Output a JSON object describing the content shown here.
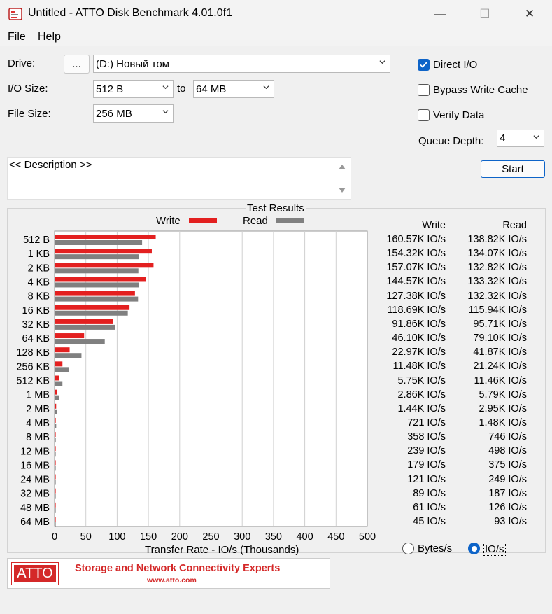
{
  "window": {
    "title": "Untitled - ATTO Disk Benchmark 4.01.0f1",
    "minimize_glyph": "—",
    "maximize_glyph": "☐",
    "close_glyph": "✕"
  },
  "menu": {
    "file": "File",
    "help": "Help"
  },
  "form": {
    "drive_label": "Drive:",
    "browse_label": "...",
    "drive_value": "(D:) Новый том",
    "io_size_label": "I/O Size:",
    "io_from": "512 B",
    "to_label": "to",
    "io_to": "64 MB",
    "file_size_label": "File Size:",
    "file_size": "256 MB",
    "direct_io_label": "Direct I/O",
    "direct_io_checked": true,
    "bypass_label": "Bypass Write Cache",
    "bypass_checked": false,
    "verify_label": "Verify Data",
    "verify_checked": false,
    "queue_label": "Queue Depth:",
    "queue_value": "4",
    "start_label": "Start",
    "description": "<< Description >>"
  },
  "results": {
    "group_title": "Test Results",
    "write_header": "Write",
    "read_header": "Read",
    "rows": [
      {
        "size": "512 B",
        "write": "160.57K IO/s",
        "read": "138.82K IO/s"
      },
      {
        "size": "1 KB",
        "write": "154.32K IO/s",
        "read": "134.07K IO/s"
      },
      {
        "size": "2 KB",
        "write": "157.07K IO/s",
        "read": "132.82K IO/s"
      },
      {
        "size": "4 KB",
        "write": "144.57K IO/s",
        "read": "133.32K IO/s"
      },
      {
        "size": "8 KB",
        "write": "127.38K IO/s",
        "read": "132.32K IO/s"
      },
      {
        "size": "16 KB",
        "write": "118.69K IO/s",
        "read": "115.94K IO/s"
      },
      {
        "size": "32 KB",
        "write": "91.86K IO/s",
        "read": "95.71K IO/s"
      },
      {
        "size": "64 KB",
        "write": "46.10K IO/s",
        "read": "79.10K IO/s"
      },
      {
        "size": "128 KB",
        "write": "22.97K IO/s",
        "read": "41.87K IO/s"
      },
      {
        "size": "256 KB",
        "write": "11.48K IO/s",
        "read": "21.24K IO/s"
      },
      {
        "size": "512 KB",
        "write": "5.75K IO/s",
        "read": "11.46K IO/s"
      },
      {
        "size": "1 MB",
        "write": "2.86K IO/s",
        "read": "5.79K IO/s"
      },
      {
        "size": "2 MB",
        "write": "1.44K IO/s",
        "read": "2.95K IO/s"
      },
      {
        "size": "4 MB",
        "write": "721 IO/s",
        "read": "1.48K IO/s"
      },
      {
        "size": "8 MB",
        "write": "358 IO/s",
        "read": "746 IO/s"
      },
      {
        "size": "12 MB",
        "write": "239 IO/s",
        "read": "498 IO/s"
      },
      {
        "size": "16 MB",
        "write": "179 IO/s",
        "read": "375 IO/s"
      },
      {
        "size": "24 MB",
        "write": "121 IO/s",
        "read": "249 IO/s"
      },
      {
        "size": "32 MB",
        "write": "89 IO/s",
        "read": "187 IO/s"
      },
      {
        "size": "48 MB",
        "write": "61 IO/s",
        "read": "126 IO/s"
      },
      {
        "size": "64 MB",
        "write": "45 IO/s",
        "read": "93 IO/s"
      }
    ],
    "radio_bytes": "Bytes/s",
    "radio_ios": "IO/s",
    "selected_unit": "IO/s"
  },
  "banner": {
    "logo": "ATTO",
    "tagline": "Storage and Network Connectivity Experts",
    "url": "www.atto.com"
  },
  "chart_data": {
    "type": "bar",
    "orientation": "horizontal",
    "xlabel": "Transfer Rate - IO/s (Thousands)",
    "xlim": [
      0,
      500
    ],
    "xticks": [
      0,
      50,
      100,
      150,
      200,
      250,
      300,
      350,
      400,
      450,
      500
    ],
    "categories": [
      "512 B",
      "1 KB",
      "2 KB",
      "4 KB",
      "8 KB",
      "16 KB",
      "32 KB",
      "64 KB",
      "128 KB",
      "256 KB",
      "512 KB",
      "1 MB",
      "2 MB",
      "4 MB",
      "8 MB",
      "12 MB",
      "16 MB",
      "24 MB",
      "32 MB",
      "48 MB",
      "64 MB"
    ],
    "series": [
      {
        "name": "Write",
        "color": "#e32020",
        "values": [
          160.57,
          154.32,
          157.07,
          144.57,
          127.38,
          118.69,
          91.86,
          46.1,
          22.97,
          11.48,
          5.75,
          2.86,
          1.44,
          0.721,
          0.358,
          0.239,
          0.179,
          0.121,
          0.089,
          0.061,
          0.045
        ]
      },
      {
        "name": "Read",
        "color": "#808080",
        "values": [
          138.82,
          134.07,
          132.82,
          133.32,
          132.32,
          115.94,
          95.71,
          79.1,
          41.87,
          21.24,
          11.46,
          5.79,
          2.95,
          1.48,
          0.746,
          0.498,
          0.375,
          0.249,
          0.187,
          0.126,
          0.093
        ]
      }
    ],
    "grid": true,
    "legend": "top-center"
  },
  "colors": {
    "write": "#e32020",
    "read": "#808080",
    "accent": "#0e64c8"
  }
}
